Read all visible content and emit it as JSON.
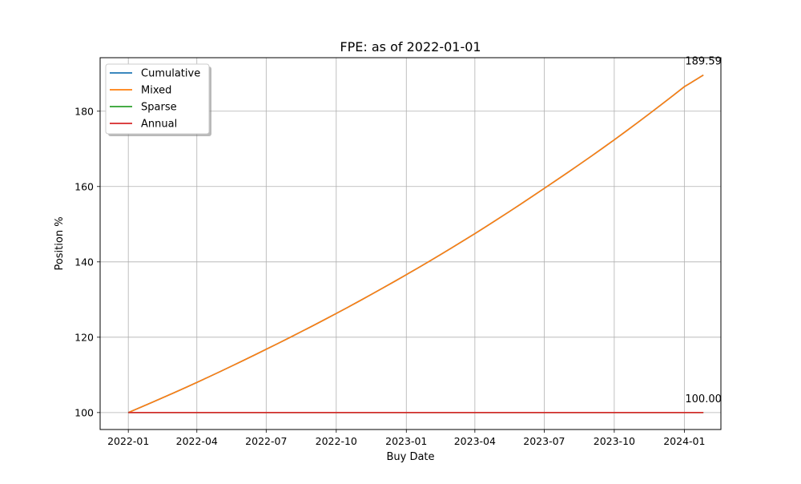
{
  "chart_data": {
    "type": "line",
    "title": "FPE: as of 2022-01-01",
    "xlabel": "Buy Date",
    "ylabel": "Position %",
    "x_type": "date",
    "xlim": [
      "2021-11-25",
      "2024-02-18"
    ],
    "ylim": [
      95.5,
      194.2
    ],
    "x_ticks": [
      "2022-01-01",
      "2022-04-01",
      "2022-07-01",
      "2022-10-01",
      "2023-01-01",
      "2023-04-01",
      "2023-07-01",
      "2023-10-01",
      "2024-01-01"
    ],
    "x_tick_labels": [
      "2022-01",
      "2022-04",
      "2022-07",
      "2022-10",
      "2023-01",
      "2023-04",
      "2023-07",
      "2023-10",
      "2024-01"
    ],
    "y_ticks": [
      100,
      120,
      140,
      160,
      180
    ],
    "y_tick_labels": [
      "100",
      "120",
      "140",
      "160",
      "180"
    ],
    "grid": true,
    "legend_position": "top-left",
    "series": [
      {
        "name": "Cumulative",
        "color": "#1f77b4",
        "x": [
          "2022-01-01",
          "2022-04-01",
          "2022-07-01",
          "2022-10-01",
          "2023-01-01",
          "2023-04-01",
          "2023-07-01",
          "2023-10-01",
          "2024-01-01",
          "2024-01-26"
        ],
        "y": [
          100.0,
          108.0,
          116.8,
          126.3,
          136.6,
          147.5,
          159.5,
          172.4,
          186.5,
          189.59
        ]
      },
      {
        "name": "Mixed",
        "color": "#ff7f0e",
        "x": [
          "2022-01-01",
          "2022-04-01",
          "2022-07-01",
          "2022-10-01",
          "2023-01-01",
          "2023-04-01",
          "2023-07-01",
          "2023-10-01",
          "2024-01-01",
          "2024-01-26"
        ],
        "y": [
          100.0,
          108.0,
          116.8,
          126.3,
          136.6,
          147.5,
          159.5,
          172.4,
          186.5,
          189.59
        ]
      },
      {
        "name": "Sparse",
        "color": "#2ca02c",
        "x": [
          "2022-01-01",
          "2024-01-26"
        ],
        "y": [
          100.0,
          100.0
        ]
      },
      {
        "name": "Annual",
        "color": "#d62728",
        "x": [
          "2022-01-01",
          "2024-01-26"
        ],
        "y": [
          100.0,
          100.0
        ]
      }
    ],
    "annotations": [
      {
        "text": "189.59",
        "x": "2024-01-26",
        "y": 189.59
      },
      {
        "text": "100.00",
        "x": "2024-01-26",
        "y": 100.0
      }
    ]
  }
}
